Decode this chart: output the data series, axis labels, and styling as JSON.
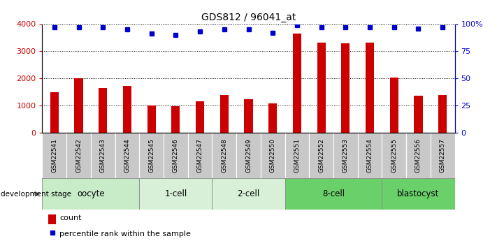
{
  "title": "GDS812 / 96041_at",
  "samples": [
    "GSM22541",
    "GSM22542",
    "GSM22543",
    "GSM22544",
    "GSM22545",
    "GSM22546",
    "GSM22547",
    "GSM22548",
    "GSM22549",
    "GSM22550",
    "GSM22551",
    "GSM22552",
    "GSM22553",
    "GSM22554",
    "GSM22555",
    "GSM22556",
    "GSM22557"
  ],
  "counts": [
    1500,
    2000,
    1630,
    1720,
    1000,
    960,
    1150,
    1390,
    1230,
    1080,
    3650,
    3330,
    3280,
    3330,
    2020,
    1360,
    1380
  ],
  "percentiles": [
    97,
    97,
    97,
    95,
    91,
    90,
    93,
    95,
    95,
    92,
    99,
    97,
    97,
    97,
    97,
    96,
    97
  ],
  "groups": [
    {
      "label": "oocyte",
      "start": 0,
      "end": 3,
      "color": "#c8ecc8"
    },
    {
      "label": "1-cell",
      "start": 4,
      "end": 6,
      "color": "#d8f0d8"
    },
    {
      "label": "2-cell",
      "start": 7,
      "end": 9,
      "color": "#d8f0d8"
    },
    {
      "label": "8-cell",
      "start": 10,
      "end": 13,
      "color": "#6ad06a"
    },
    {
      "label": "blastocyst",
      "start": 14,
      "end": 16,
      "color": "#6ad06a"
    }
  ],
  "bar_color": "#cc0000",
  "dot_color": "#0000cc",
  "left_axis_color": "#cc0000",
  "right_axis_color": "#0000cc",
  "ylim_left": [
    0,
    4000
  ],
  "ylim_right": [
    0,
    100
  ],
  "yticks_left": [
    0,
    1000,
    2000,
    3000,
    4000
  ],
  "yticks_right": [
    0,
    25,
    50,
    75,
    100
  ],
  "yticklabels_right": [
    "0",
    "25",
    "50",
    "75",
    "100%"
  ],
  "background_color": "#ffffff",
  "sample_box_color": "#c8c8c8",
  "xlabel_group": "development stage",
  "legend_count": "count",
  "legend_pct": "percentile rank within the sample",
  "fig_width": 7.11,
  "fig_height": 3.45,
  "dpi": 100
}
